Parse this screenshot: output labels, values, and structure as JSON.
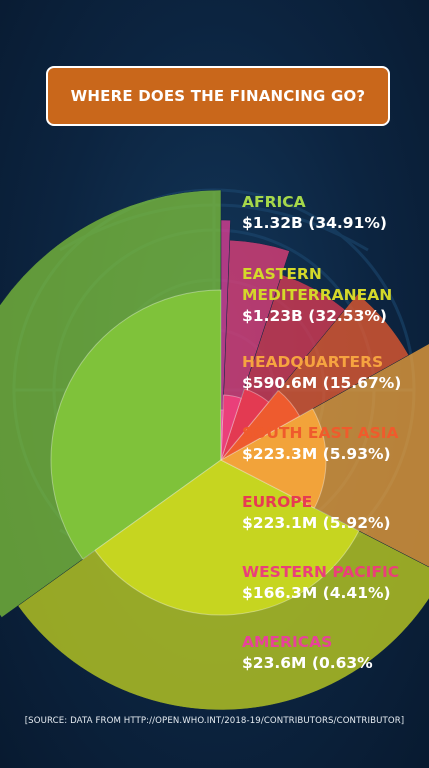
{
  "title": "WHERE DOES THE FINANCING GO?",
  "source": "[SOURCE: DATA FROM HTTP://OPEN.WHO.INT/2018-19/CONTRIBUTORS/CONTRIBUTOR]",
  "chart_data": {
    "type": "pie",
    "title": "WHERE DOES THE FINANCING GO?",
    "slices": [
      {
        "name": "AFRICA",
        "amount": "$1.32B",
        "percent_label": "(34.91%)",
        "value": 34.91,
        "color": "#7fc23a",
        "label_color": "#a6d84a"
      },
      {
        "name": "EASTERN MEDITERRANEAN",
        "amount": "$1.23B",
        "percent_label": "(32.53%)",
        "value": 32.53,
        "color": "#c6d520",
        "label_color": "#d4d82a"
      },
      {
        "name": "HEADQUARTERS",
        "amount": "$590.6M",
        "percent_label": "(15.67%)",
        "value": 15.67,
        "color": "#f2a33a",
        "label_color": "#f6a340"
      },
      {
        "name": "SOUTH EAST ASIA",
        "amount": "$223.3M",
        "percent_label": "(5.93%)",
        "value": 5.93,
        "color": "#ee5b2e",
        "label_color": "#ef5b2c"
      },
      {
        "name": "EUROPE",
        "amount": "$223.1M",
        "percent_label": "(5.92%)",
        "value": 5.92,
        "color": "#e33a52",
        "label_color": "#e73b52"
      },
      {
        "name": "WESTERN PACIFIC",
        "amount": "$166.3M",
        "percent_label": "(4.41%)",
        "value": 4.41,
        "color": "#ea3f7a",
        "label_color": "#ea3f7a"
      },
      {
        "name": "AMERICAS",
        "amount": "$23.6M",
        "percent_label": "(0.63%",
        "value": 0.63,
        "color": "#e43f96",
        "label_color": "#e8429a"
      }
    ]
  }
}
